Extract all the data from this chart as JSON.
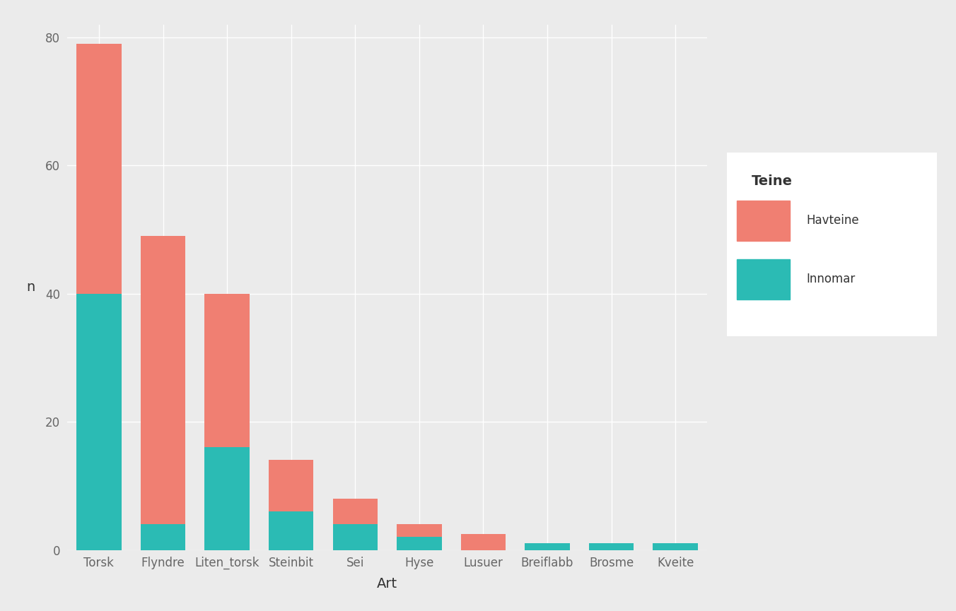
{
  "categories": [
    "Torsk",
    "Flyndre",
    "Liten_torsk",
    "Steinbit",
    "Sei",
    "Hyse",
    "Lusuer",
    "Breiflabb",
    "Brosme",
    "Kveite"
  ],
  "havteine": [
    79,
    49,
    40,
    14,
    8,
    4,
    2.5,
    1,
    1,
    0
  ],
  "innomar": [
    40,
    4,
    16,
    6,
    4,
    2,
    0,
    1,
    1,
    1
  ],
  "color_havteine": "#F07F72",
  "color_innomar": "#2BBBB4",
  "background_color": "#EBEBEB",
  "plot_bg_color": "#EBEBEB",
  "grid_color": "#FFFFFF",
  "legend_bg_color": "#FFFFFF",
  "xlabel": "Art",
  "ylabel": "n",
  "legend_title": "Teine",
  "legend_labels": [
    "Havteine",
    "Innomar"
  ],
  "ylim": [
    0,
    82
  ],
  "yticks": [
    0,
    20,
    40,
    60,
    80
  ],
  "axis_text_color": "#666666",
  "axis_label_color": "#333333"
}
